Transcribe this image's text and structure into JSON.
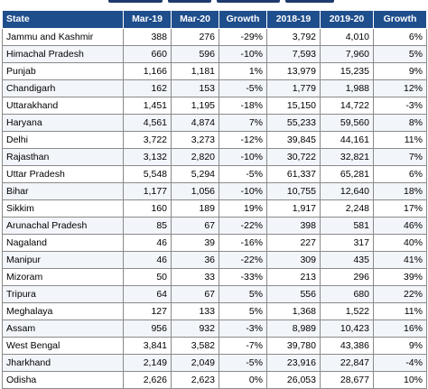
{
  "table": {
    "headers": [
      "State",
      "Mar-19",
      "Mar-20",
      "Growth",
      "2018-19",
      "2019-20",
      "Growth"
    ],
    "rows": [
      [
        "Jammu and Kashmir",
        "388",
        "276",
        "-29%",
        "3,792",
        "4,010",
        "6%"
      ],
      [
        "Himachal Pradesh",
        "660",
        "596",
        "-10%",
        "7,593",
        "7,960",
        "5%"
      ],
      [
        "Punjab",
        "1,166",
        "1,181",
        "1%",
        "13,979",
        "15,235",
        "9%"
      ],
      [
        "Chandigarh",
        "162",
        "153",
        "-5%",
        "1,779",
        "1,988",
        "12%"
      ],
      [
        "Uttarakhand",
        "1,451",
        "1,195",
        "-18%",
        "15,150",
        "14,722",
        "-3%"
      ],
      [
        "Haryana",
        "4,561",
        "4,874",
        "7%",
        "55,233",
        "59,560",
        "8%"
      ],
      [
        "Delhi",
        "3,722",
        "3,273",
        "-12%",
        "39,845",
        "44,161",
        "11%"
      ],
      [
        "Rajasthan",
        "3,132",
        "2,820",
        "-10%",
        "30,722",
        "32,821",
        "7%"
      ],
      [
        "Uttar Pradesh",
        "5,548",
        "5,294",
        "-5%",
        "61,337",
        "65,281",
        "6%"
      ],
      [
        "Bihar",
        "1,177",
        "1,056",
        "-10%",
        "10,755",
        "12,640",
        "18%"
      ],
      [
        "Sikkim",
        "160",
        "189",
        "19%",
        "1,917",
        "2,248",
        "17%"
      ],
      [
        "Arunachal Pradesh",
        "85",
        "67",
        "-22%",
        "398",
        "581",
        "46%"
      ],
      [
        "Nagaland",
        "46",
        "39",
        "-16%",
        "227",
        "317",
        "40%"
      ],
      [
        "Manipur",
        "46",
        "36",
        "-22%",
        "309",
        "435",
        "41%"
      ],
      [
        "Mizoram",
        "50",
        "33",
        "-33%",
        "213",
        "296",
        "39%"
      ],
      [
        "Tripura",
        "64",
        "67",
        "5%",
        "556",
        "680",
        "22%"
      ],
      [
        "Meghalaya",
        "127",
        "133",
        "5%",
        "1,368",
        "1,522",
        "11%"
      ],
      [
        "Assam",
        "956",
        "932",
        "-3%",
        "8,989",
        "10,423",
        "16%"
      ],
      [
        "West Bengal",
        "3,841",
        "3,582",
        "-7%",
        "39,780",
        "43,386",
        "9%"
      ],
      [
        "Jharkhand",
        "2,149",
        "2,049",
        "-5%",
        "23,916",
        "22,847",
        "-4%"
      ],
      [
        "Odisha",
        "2,626",
        "2,623",
        "0%",
        "26,053",
        "28,677",
        "10%"
      ]
    ]
  }
}
